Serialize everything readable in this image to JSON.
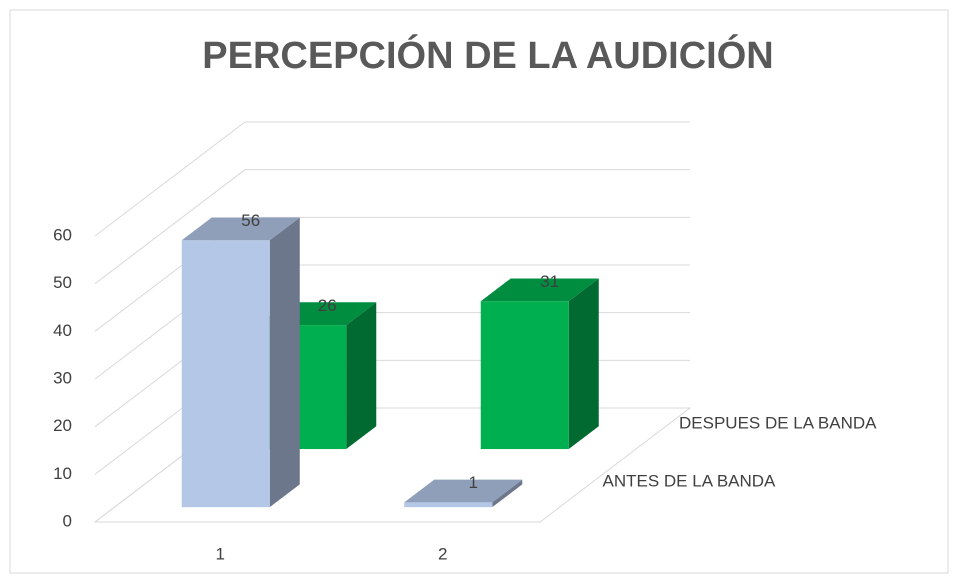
{
  "chart_data": {
    "type": "bar",
    "title": "PERCEPCIÓN DE LA AUDICIÓN",
    "categories": [
      "1",
      "2"
    ],
    "series": [
      {
        "name": "ANTES DE LA BANDA",
        "color": "#b4c7e7",
        "values": [
          56,
          1
        ]
      },
      {
        "name": "DESPUES DE LA BANDA",
        "color": "#00b050",
        "values": [
          26,
          31
        ]
      }
    ],
    "ylim": [
      0,
      60
    ],
    "yticks": [
      0,
      10,
      20,
      30,
      40,
      50,
      60
    ],
    "grid": true
  }
}
